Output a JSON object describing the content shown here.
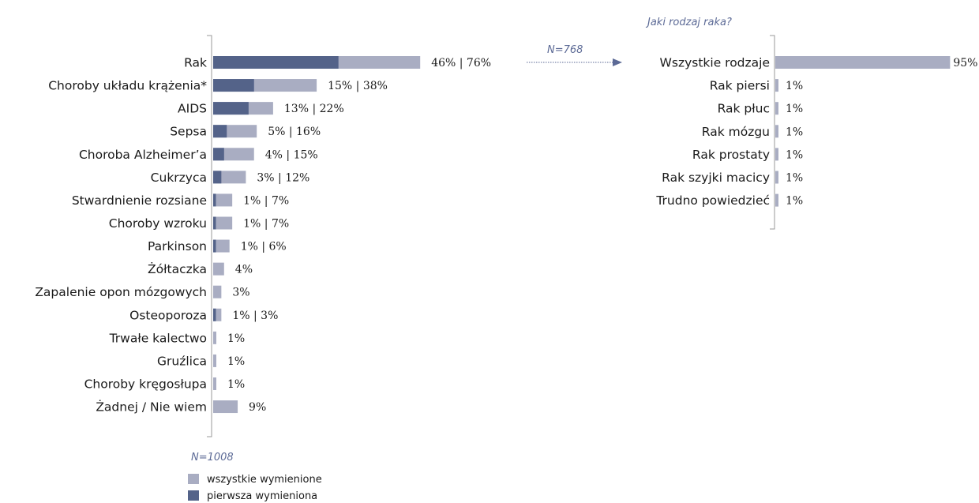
{
  "colors": {
    "all_mentioned": "#a9adc2",
    "first_mentioned": "#546389",
    "annotation": "#5c6a96",
    "axis": "#999999"
  },
  "chart_data": [
    {
      "type": "bar",
      "orientation": "horizontal",
      "note": "N=1008",
      "categories": [
        "Rak",
        "Choroby układu krążenia*",
        "AIDS",
        "Sepsa",
        "Choroba Alzheimer’a",
        "Cukrzyca",
        "Stwardnienie rozsiane",
        "Choroby wzroku",
        "Parkinson",
        "Żółtaczka",
        "Zapalenie opon mózgowych",
        "Osteoporoza",
        "Trwałe kalectwo",
        "Gruźlica",
        "Choroby kręgosłupa",
        "Żadnej / Nie wiem"
      ],
      "series": [
        {
          "name": "wszystkie wymienione",
          "values": [
            76,
            38,
            22,
            16,
            15,
            12,
            7,
            7,
            6,
            4,
            3,
            3,
            1,
            1,
            1,
            9
          ]
        },
        {
          "name": "pierwsza wymieniona",
          "values": [
            46,
            15,
            13,
            5,
            4,
            3,
            1,
            1,
            1,
            0,
            0,
            1,
            0,
            0,
            0,
            0
          ]
        }
      ],
      "labels": [
        "46% | 76%",
        "15% | 38%",
        "13% | 22%",
        "5% | 16%",
        "4% | 15%",
        "3% | 12%",
        "1% | 7%",
        "1% | 7%",
        "1% | 6%",
        "4%",
        "3%",
        "1% | 3%",
        "1%",
        "1%",
        "1%",
        "9%"
      ]
    },
    {
      "type": "bar",
      "orientation": "horizontal",
      "title": "Jaki rodzaj raka?",
      "note": "N=768",
      "categories": [
        "Wszystkie rodzaje",
        "Rak piersi",
        "Rak płuc",
        "Rak mózgu",
        "Rak prostaty",
        "Rak szyjki macicy",
        "Trudno powiedzieć"
      ],
      "values": [
        95,
        1,
        1,
        1,
        1,
        1,
        1
      ],
      "labels": [
        "95%",
        "1%",
        "1%",
        "1%",
        "1%",
        "1%",
        "1%"
      ]
    }
  ]
}
